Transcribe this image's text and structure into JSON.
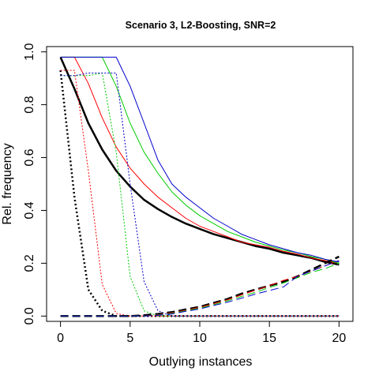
{
  "chart_data": {
    "type": "line",
    "title": "Scenario 3, L2-Boosting, SNR=2",
    "xlabel": "Outlying instances",
    "ylabel": "Rel. frequency",
    "xlim": [
      -1,
      21
    ],
    "ylim": [
      -0.02,
      1.02
    ],
    "xticks": [
      0,
      5,
      10,
      15,
      20
    ],
    "yticks": [
      0.0,
      0.2,
      0.4,
      0.6,
      0.8,
      1.0
    ],
    "x": [
      0,
      1,
      2,
      3,
      4,
      5,
      6,
      7,
      8,
      9,
      10,
      11,
      12,
      13,
      14,
      15,
      16,
      17,
      18,
      19,
      20
    ],
    "grid": false,
    "legend": "none",
    "series": [
      {
        "color": "#000000",
        "dash": "solid",
        "width": 2.5,
        "values": [
          0.98,
          0.86,
          0.73,
          0.63,
          0.55,
          0.49,
          0.44,
          0.405,
          0.375,
          0.35,
          0.33,
          0.31,
          0.295,
          0.28,
          0.265,
          0.255,
          0.24,
          0.23,
          0.22,
          0.205,
          0.195
        ]
      },
      {
        "color": "#ff0000",
        "dash": "solid",
        "width": 1,
        "values": [
          0.98,
          0.98,
          0.88,
          0.75,
          0.64,
          0.56,
          0.5,
          0.45,
          0.41,
          0.37,
          0.34,
          0.32,
          0.3,
          0.28,
          0.27,
          0.26,
          0.245,
          0.235,
          0.22,
          0.21,
          0.2
        ]
      },
      {
        "color": "#00cc00",
        "dash": "solid",
        "width": 1,
        "values": [
          0.98,
          0.98,
          0.98,
          0.98,
          0.87,
          0.73,
          0.62,
          0.54,
          0.47,
          0.42,
          0.38,
          0.35,
          0.32,
          0.3,
          0.28,
          0.265,
          0.25,
          0.24,
          0.225,
          0.215,
          0.2
        ]
      },
      {
        "color": "#0000cc",
        "dash": "solid",
        "width": 1,
        "values": [
          0.98,
          0.98,
          0.98,
          0.98,
          0.98,
          0.87,
          0.73,
          0.59,
          0.5,
          0.45,
          0.41,
          0.37,
          0.34,
          0.31,
          0.29,
          0.27,
          0.255,
          0.24,
          0.23,
          0.215,
          0.205
        ]
      },
      {
        "color": "#000000",
        "dash": "2,3",
        "width": 2.5,
        "values": [
          0.93,
          0.45,
          0.1,
          0.02,
          0,
          0,
          0,
          0,
          0,
          0,
          0,
          0,
          0,
          0,
          0,
          0,
          0,
          0,
          0,
          0,
          0
        ]
      },
      {
        "color": "#ff0000",
        "dash": "2,2",
        "width": 1,
        "values": [
          0.93,
          0.93,
          0.55,
          0.12,
          0.01,
          0,
          0,
          0,
          0,
          0,
          0,
          0,
          0,
          0,
          0,
          0,
          0,
          0,
          0,
          0,
          0
        ]
      },
      {
        "color": "#00cc00",
        "dash": "2,2",
        "width": 1,
        "values": [
          0.91,
          0.91,
          0.91,
          0.92,
          0.62,
          0.15,
          0.02,
          0,
          0,
          0,
          0,
          0,
          0,
          0,
          0,
          0,
          0,
          0,
          0,
          0,
          0
        ]
      },
      {
        "color": "#0000cc",
        "dash": "2,2",
        "width": 1,
        "values": [
          0.91,
          0.91,
          0.92,
          0.92,
          0.92,
          0.5,
          0.13,
          0.02,
          0,
          0,
          0,
          0,
          0,
          0,
          0,
          0,
          0,
          0,
          0,
          0,
          0
        ]
      },
      {
        "color": "#000000",
        "dash": "10,5",
        "width": 2.5,
        "values": [
          0,
          0,
          0,
          0,
          0,
          0,
          0.003,
          0.008,
          0.015,
          0.025,
          0.035,
          0.05,
          0.065,
          0.085,
          0.1,
          0.115,
          0.13,
          0.15,
          0.175,
          0.2,
          0.225
        ]
      },
      {
        "color": "#ff0000",
        "dash": "10,5",
        "width": 1,
        "values": [
          0,
          0,
          0,
          0,
          0,
          0,
          0,
          0.005,
          0.012,
          0.022,
          0.033,
          0.047,
          0.062,
          0.08,
          0.098,
          0.115,
          0.135,
          0.15,
          0.17,
          0.19,
          0.21
        ]
      },
      {
        "color": "#00cc00",
        "dash": "10,5",
        "width": 1,
        "values": [
          0,
          0,
          0,
          0,
          0,
          0,
          0,
          0.004,
          0.01,
          0.02,
          0.03,
          0.043,
          0.058,
          0.074,
          0.09,
          0.108,
          0.125,
          0.145,
          0.165,
          0.18,
          0.2
        ]
      },
      {
        "color": "#0000cc",
        "dash": "10,5",
        "width": 1,
        "values": [
          0,
          0,
          0,
          0,
          0,
          0,
          0,
          0.003,
          0.008,
          0.018,
          0.027,
          0.04,
          0.053,
          0.068,
          0.083,
          0.097,
          0.11,
          0.15,
          0.17,
          0.19,
          0.21
        ]
      }
    ]
  }
}
